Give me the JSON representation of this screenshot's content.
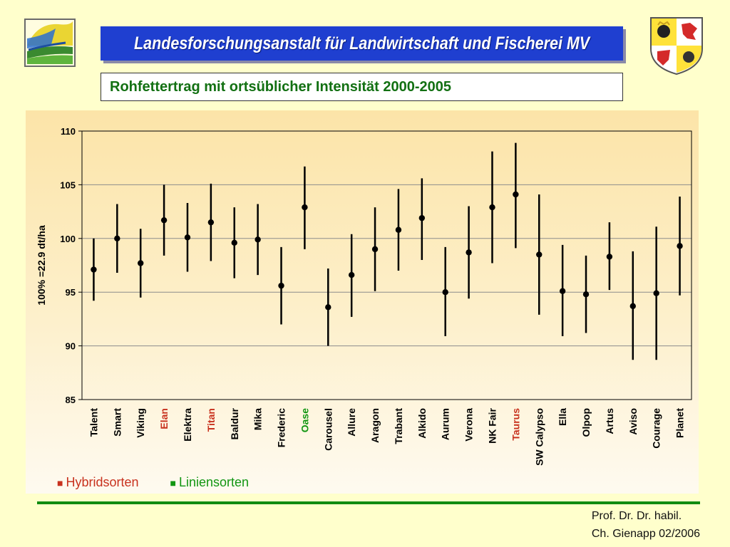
{
  "header": {
    "institution": "Landesforschungsanstalt für Landwirtschaft und Fischerei  MV",
    "subtitle": "Rohfettertrag mit ortsüblicher Intensität 2000-2005"
  },
  "legend": {
    "hybrid_label": "Hybridsorten",
    "line_label": "Liniensorten",
    "hybrid_color": "#c8321e",
    "line_color": "#129612"
  },
  "credit": {
    "line1": "Prof. Dr. Dr. habil.",
    "line2": "Ch. Gienapp 02/2006"
  },
  "icons": {
    "left_logo": "landscape-logo-icon",
    "right_logo": "coat-of-arms-icon"
  },
  "chart_data": {
    "type": "scatter",
    "ylabel": "100% =22.9 dt/ha",
    "ylim": [
      85,
      110
    ],
    "yticks": [
      85,
      90,
      95,
      100,
      105,
      110
    ],
    "grid": true,
    "categories": [
      "Talent",
      "Smart",
      "Viking",
      "Elan",
      "Elektra",
      "Titan",
      "Baldur",
      "Mika",
      "Frederic",
      "Oase",
      "Carousel",
      "Allure",
      "Aragon",
      "Trabant",
      "Alkido",
      "Aurum",
      "Verona",
      "NK Fair",
      "Taurus",
      "SW Calypso",
      "Ella",
      "Olpop",
      "Artus",
      "Aviso",
      "Courage",
      "Planet"
    ],
    "category_types": [
      "line",
      "line",
      "line",
      "hybrid",
      "line",
      "hybrid",
      "line",
      "line",
      "line",
      "special",
      "line",
      "line",
      "line",
      "line",
      "line",
      "line",
      "line",
      "line",
      "hybrid",
      "line",
      "line",
      "line",
      "line",
      "line",
      "line",
      "line"
    ],
    "type_colors": {
      "line": "#000000",
      "hybrid": "#c8321e",
      "special": "#129612"
    },
    "mean": [
      97.1,
      100.0,
      97.7,
      101.7,
      100.1,
      101.5,
      99.6,
      99.9,
      95.6,
      102.9,
      93.6,
      96.6,
      99.0,
      100.8,
      101.9,
      95.0,
      98.7,
      102.9,
      104.1,
      98.5,
      95.1,
      94.8,
      98.3,
      93.7,
      94.9,
      99.3
    ],
    "lower": [
      94.2,
      96.8,
      94.5,
      98.4,
      96.9,
      97.9,
      96.3,
      96.6,
      92.0,
      99.0,
      90.0,
      92.7,
      95.1,
      97.0,
      98.0,
      90.9,
      94.4,
      97.7,
      99.1,
      92.9,
      90.9,
      91.2,
      95.2,
      88.7,
      88.7,
      94.7
    ],
    "upper": [
      100.0,
      103.2,
      100.9,
      105.0,
      103.3,
      105.1,
      102.9,
      103.2,
      99.2,
      106.7,
      97.2,
      100.4,
      102.9,
      104.6,
      105.6,
      99.2,
      103.0,
      108.1,
      108.9,
      104.1,
      99.4,
      98.4,
      101.5,
      98.8,
      101.1,
      103.9
    ]
  }
}
